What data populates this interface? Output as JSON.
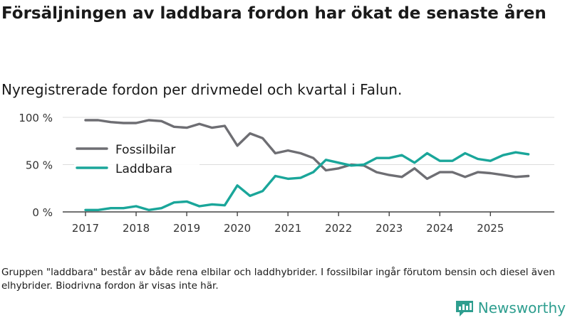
{
  "header": {
    "title": "Försäljningen av laddbara fordon har ökat de senaste åren",
    "subtitle": "Nyregistrerade fordon per drivmedel och kvartal i Falun."
  },
  "footer": {
    "note": "Gruppen \"laddbara\" består av både rena elbilar och laddhybrider. I fossilbilar ingår förutom bensin och diesel även elhybrider. Biodrivna fordon är visas inte här.",
    "brand": "Newsworthy",
    "brand_icon": "newsworthy-logo-icon"
  },
  "chart_data": {
    "type": "line",
    "title": "Försäljningen av laddbara fordon har ökat de senaste åren",
    "subtitle": "Nyregistrerade fordon per drivmedel och kvartal i Falun.",
    "xlabel": "",
    "ylabel": "",
    "x": [
      "2017 Q1",
      "2017 Q2",
      "2017 Q3",
      "2017 Q4",
      "2018 Q1",
      "2018 Q2",
      "2018 Q3",
      "2018 Q4",
      "2019 Q1",
      "2019 Q2",
      "2019 Q3",
      "2019 Q4",
      "2020 Q1",
      "2020 Q2",
      "2020 Q3",
      "2020 Q4",
      "2021 Q1",
      "2021 Q2",
      "2021 Q3",
      "2021 Q4",
      "2022 Q1",
      "2022 Q2",
      "2022 Q3",
      "2022 Q4",
      "2023 Q1",
      "2023 Q2",
      "2023 Q3",
      "2023 Q4",
      "2024 Q1",
      "2024 Q2",
      "2024 Q3",
      "2024 Q4",
      "2025 Q1",
      "2025 Q2",
      "2025 Q3",
      "2025 Q4"
    ],
    "x_tick_labels": [
      "2017",
      "2018",
      "2019",
      "2020",
      "2021",
      "2022",
      "2023",
      "2024",
      "2025"
    ],
    "y_tick_labels": [
      "0 %",
      "50 %",
      "100 %"
    ],
    "y_ticks": [
      0,
      50,
      100
    ],
    "ylim": [
      0,
      100
    ],
    "grid": true,
    "legend_position": "left",
    "series": [
      {
        "name": "Fossilbilar",
        "color": "#6e6e73",
        "values": [
          97,
          97,
          95,
          94,
          94,
          97,
          96,
          90,
          89,
          93,
          89,
          91,
          70,
          83,
          78,
          62,
          65,
          62,
          57,
          44,
          46,
          50,
          49,
          42,
          39,
          37,
          46,
          35,
          42,
          42,
          37,
          42,
          41,
          39,
          37,
          38
        ]
      },
      {
        "name": "Laddbara",
        "color": "#1aa69a",
        "values": [
          2,
          2,
          4,
          4,
          6,
          2,
          4,
          10,
          11,
          6,
          8,
          7,
          28,
          17,
          22,
          38,
          35,
          36,
          42,
          55,
          52,
          49,
          50,
          57,
          57,
          60,
          52,
          62,
          54,
          54,
          62,
          56,
          54,
          60,
          63,
          61
        ]
      }
    ]
  }
}
